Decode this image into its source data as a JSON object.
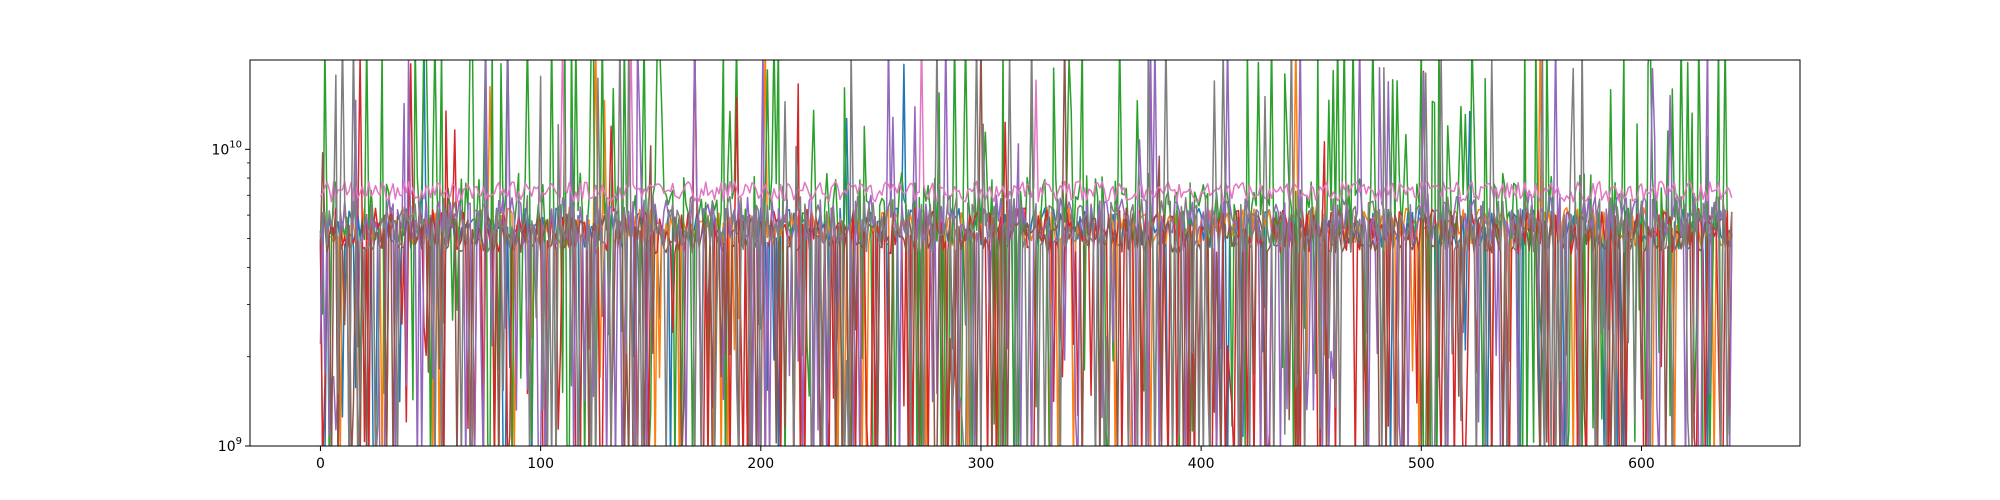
{
  "chart_data": {
    "type": "line",
    "title": "",
    "xlabel": "",
    "ylabel": "",
    "yscale": "log",
    "xlim": [
      -32,
      672
    ],
    "ylim": [
      1000000000,
      20000000000
    ],
    "x_ticks": [
      0,
      100,
      200,
      300,
      400,
      500,
      600
    ],
    "y_ticks": [
      {
        "value": 1000000000,
        "base": "10",
        "exp": "9"
      },
      {
        "value": 10000000000,
        "base": "10",
        "exp": "10"
      }
    ],
    "grid": false,
    "legend": "none",
    "x_count": 642,
    "series": [
      {
        "color": "#1f77b4",
        "base": 5400000000,
        "spread": 0.16,
        "drop_prob": 0.1,
        "spike_prob": 0.01,
        "seed": 11
      },
      {
        "color": "#ff7f0e",
        "base": 5500000000,
        "spread": 0.15,
        "drop_prob": 0.11,
        "spike_prob": 0.012,
        "seed": 23
      },
      {
        "color": "#2ca02c",
        "base": 6200000000,
        "spread": 0.3,
        "drop_prob": 0.2,
        "spike_prob": 0.14,
        "seed": 37
      },
      {
        "color": "#d62728",
        "base": 5300000000,
        "spread": 0.18,
        "drop_prob": 0.24,
        "spike_prob": 0.02,
        "seed": 41
      },
      {
        "color": "#9467bd",
        "base": 5800000000,
        "spread": 0.2,
        "drop_prob": 0.22,
        "spike_prob": 0.04,
        "seed": 53
      },
      {
        "color": "#8c564b",
        "base": 5200000000,
        "spread": 0.15,
        "drop_prob": 0.14,
        "spike_prob": 0.01,
        "seed": 67
      },
      {
        "color": "#e377c2",
        "base": 7200000000,
        "spread": 0.08,
        "drop_prob": 0.0,
        "spike_prob": 0.005,
        "seed": 71
      },
      {
        "color": "#7f7f7f",
        "base": 5600000000,
        "spread": 0.22,
        "drop_prob": 0.18,
        "spike_prob": 0.05,
        "seed": 83
      }
    ]
  }
}
